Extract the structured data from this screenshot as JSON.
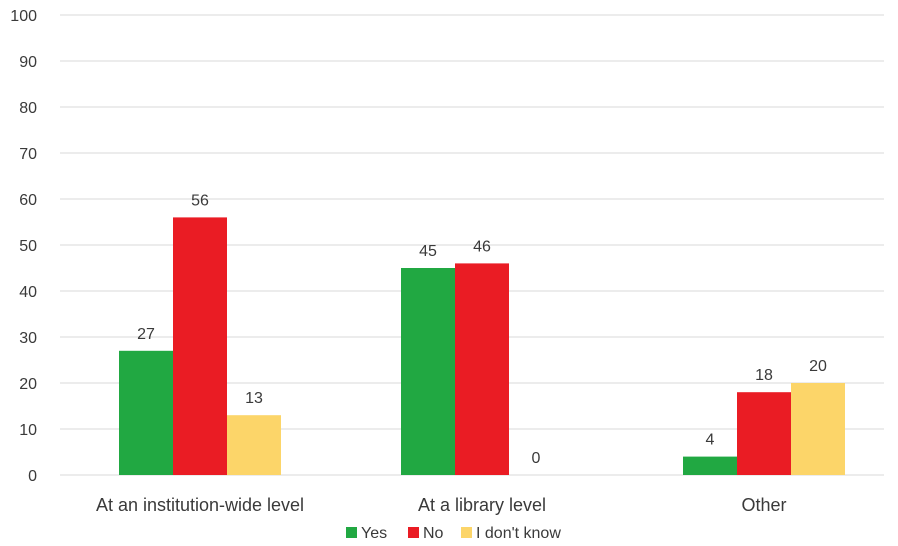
{
  "chart_data": {
    "type": "bar",
    "categories": [
      "At an institution-wide level",
      "At a library level",
      "Other"
    ],
    "series": [
      {
        "name": "Yes",
        "values": [
          27,
          45,
          4
        ],
        "color": "#21a842"
      },
      {
        "name": "No",
        "values": [
          56,
          46,
          18
        ],
        "color": "#ea1c24"
      },
      {
        "name": "I don't know",
        "values": [
          13,
          0,
          20
        ],
        "color": "#fcd569"
      }
    ],
    "yticks": [
      "0",
      "10",
      "20",
      "30",
      "40",
      "50",
      "60",
      "70",
      "80",
      "90",
      "100"
    ],
    "ylim": [
      0,
      100
    ],
    "grid": true,
    "legend": "bottom"
  }
}
